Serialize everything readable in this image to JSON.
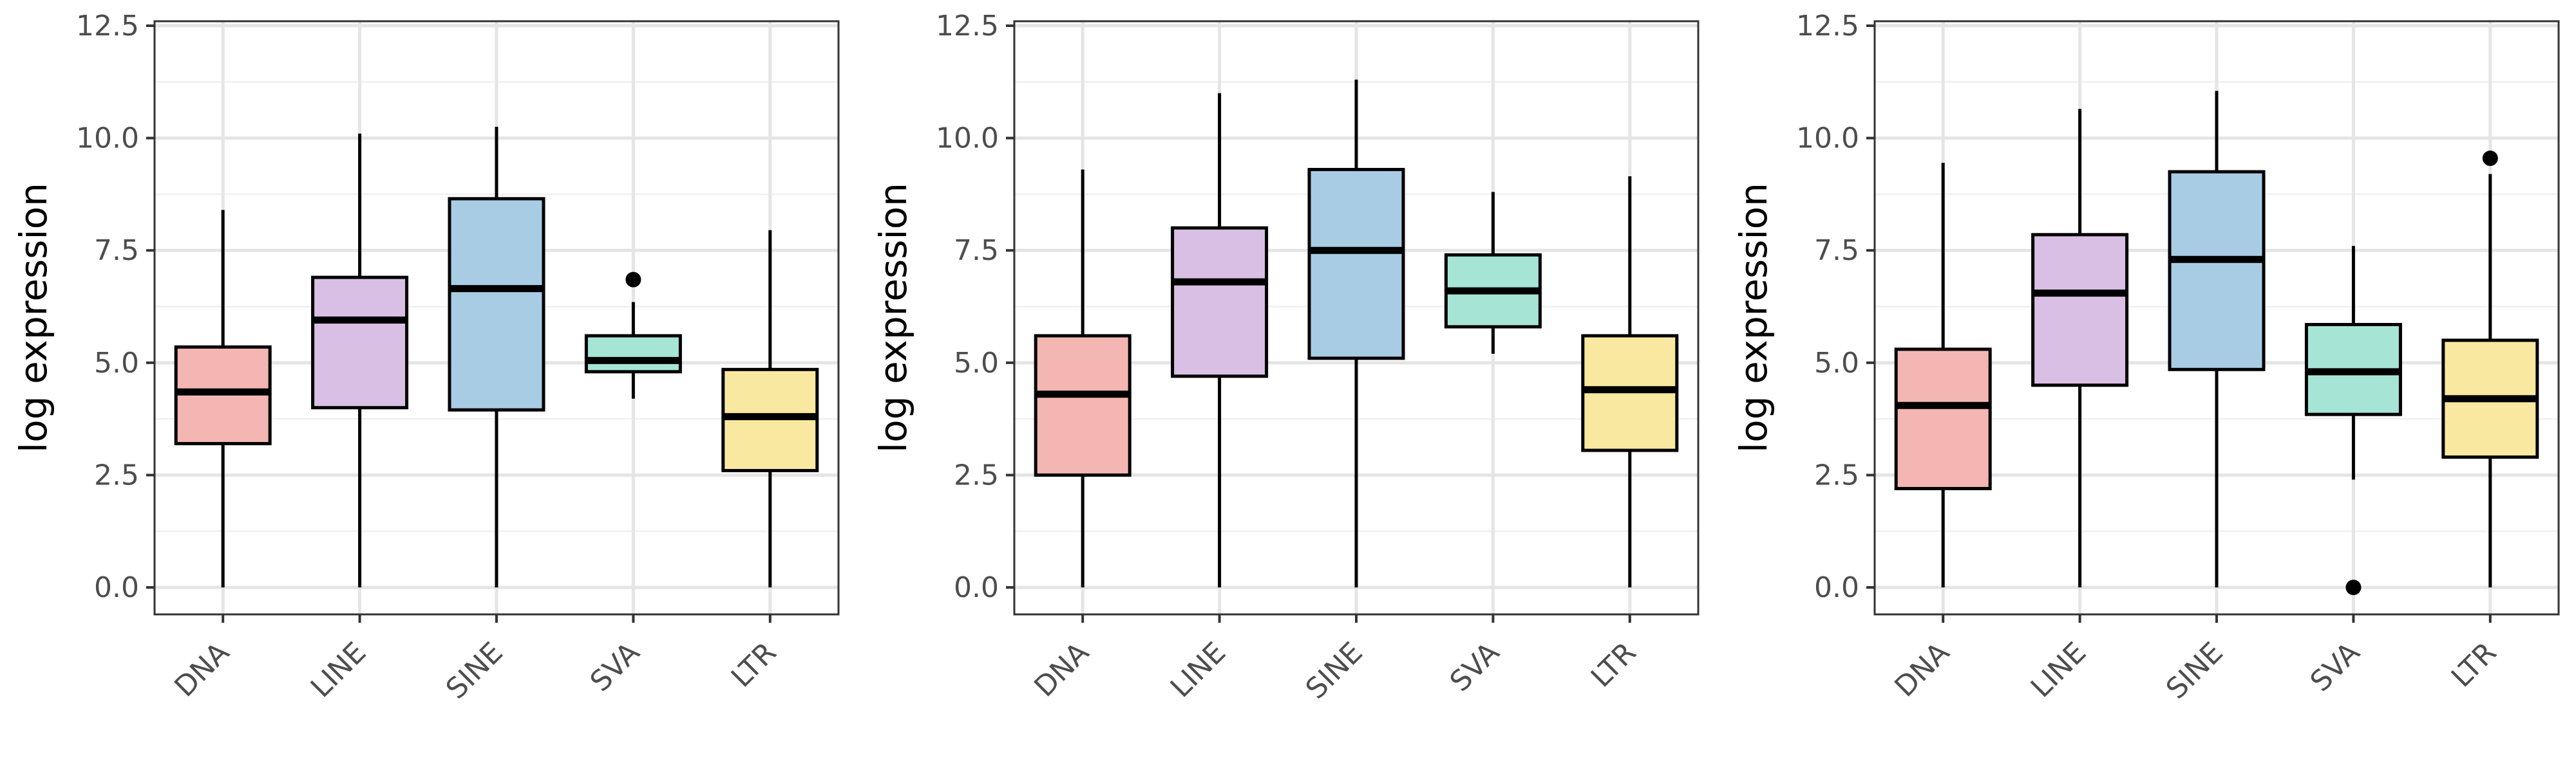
{
  "chart_data": [
    {
      "type": "box",
      "ylabel": "log expression",
      "ylim": [
        -0.6,
        12.6
      ],
      "yticks": [
        0.0,
        2.5,
        5.0,
        7.5,
        10.0,
        12.5
      ],
      "ytick_labels": [
        "0.0",
        "2.5",
        "5.0",
        "7.5",
        "10.0",
        "12.5"
      ],
      "grid": true,
      "categories": [
        "DNA",
        "LINE",
        "SINE",
        "SVA",
        "LTR"
      ],
      "colors": [
        "#f4b6b2",
        "#d8bfe3",
        "#a8cce4",
        "#a6e5d6",
        "#f9e8a0"
      ],
      "boxes": [
        {
          "min": 0.0,
          "q1": 3.2,
          "median": 4.35,
          "q3": 5.35,
          "max": 8.4,
          "outliers": []
        },
        {
          "min": 0.0,
          "q1": 4.0,
          "median": 5.95,
          "q3": 6.9,
          "max": 10.1,
          "outliers": []
        },
        {
          "min": 0.0,
          "q1": 3.95,
          "median": 6.65,
          "q3": 8.65,
          "max": 10.25,
          "outliers": []
        },
        {
          "min": 4.2,
          "q1": 4.8,
          "median": 5.05,
          "q3": 5.6,
          "max": 6.35,
          "outliers": [
            6.85
          ]
        },
        {
          "min": 0.0,
          "q1": 2.6,
          "median": 3.8,
          "q3": 4.85,
          "max": 7.95,
          "outliers": []
        }
      ]
    },
    {
      "type": "box",
      "ylabel": "log expression",
      "ylim": [
        -0.6,
        12.6
      ],
      "yticks": [
        0.0,
        2.5,
        5.0,
        7.5,
        10.0,
        12.5
      ],
      "ytick_labels": [
        "0.0",
        "2.5",
        "5.0",
        "7.5",
        "10.0",
        "12.5"
      ],
      "grid": true,
      "categories": [
        "DNA",
        "LINE",
        "SINE",
        "SVA",
        "LTR"
      ],
      "colors": [
        "#f4b6b2",
        "#d8bfe3",
        "#a8cce4",
        "#a6e5d6",
        "#f9e8a0"
      ],
      "boxes": [
        {
          "min": 0.0,
          "q1": 2.5,
          "median": 4.3,
          "q3": 5.6,
          "max": 9.3,
          "outliers": []
        },
        {
          "min": 0.0,
          "q1": 4.7,
          "median": 6.8,
          "q3": 8.0,
          "max": 11.0,
          "outliers": []
        },
        {
          "min": 0.0,
          "q1": 5.1,
          "median": 7.5,
          "q3": 9.3,
          "max": 11.3,
          "outliers": []
        },
        {
          "min": 5.2,
          "q1": 5.8,
          "median": 6.6,
          "q3": 7.4,
          "max": 8.8,
          "outliers": []
        },
        {
          "min": 0.0,
          "q1": 3.05,
          "median": 4.4,
          "q3": 5.6,
          "max": 9.15,
          "outliers": []
        }
      ]
    },
    {
      "type": "box",
      "ylabel": "log expression",
      "ylim": [
        -0.6,
        12.6
      ],
      "yticks": [
        0.0,
        2.5,
        5.0,
        7.5,
        10.0,
        12.5
      ],
      "ytick_labels": [
        "0.0",
        "2.5",
        "5.0",
        "7.5",
        "10.0",
        "12.5"
      ],
      "grid": true,
      "categories": [
        "DNA",
        "LINE",
        "SINE",
        "SVA",
        "LTR"
      ],
      "colors": [
        "#f4b6b2",
        "#d8bfe3",
        "#a8cce4",
        "#a6e5d6",
        "#f9e8a0"
      ],
      "boxes": [
        {
          "min": 0.0,
          "q1": 2.2,
          "median": 4.05,
          "q3": 5.3,
          "max": 9.45,
          "outliers": []
        },
        {
          "min": 0.0,
          "q1": 4.5,
          "median": 6.55,
          "q3": 7.85,
          "max": 10.65,
          "outliers": []
        },
        {
          "min": 0.0,
          "q1": 4.85,
          "median": 7.3,
          "q3": 9.25,
          "max": 11.05,
          "outliers": []
        },
        {
          "min": 2.4,
          "q1": 3.85,
          "median": 4.8,
          "q3": 5.85,
          "max": 7.6,
          "outliers": [
            0.0
          ]
        },
        {
          "min": 0.0,
          "q1": 2.9,
          "median": 4.2,
          "q3": 5.5,
          "max": 9.2,
          "outliers": [
            9.55
          ]
        }
      ]
    }
  ]
}
